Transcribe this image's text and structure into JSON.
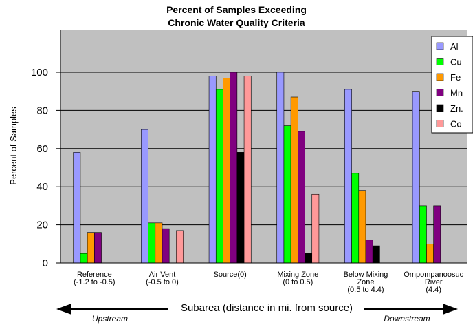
{
  "chart_data": {
    "type": "bar",
    "title": [
      "Percent of Samples Exceeding",
      "Chronic Water Quality Criteria"
    ],
    "ylabel": "Percent of Samples",
    "xlabel": "Subarea (distance in mi. from source)",
    "ylim": [
      0,
      100
    ],
    "yticks": [
      0,
      20,
      40,
      60,
      80,
      100
    ],
    "categories": [
      [
        "Reference",
        "(-1.2 to -0.5)"
      ],
      [
        "Air Vent",
        "(-0.5 to 0)"
      ],
      [
        "Source(0)"
      ],
      [
        "Mixing Zone",
        "(0 to 0.5)"
      ],
      [
        "Below Mixing",
        "Zone",
        "(0.5 to 4.4)"
      ],
      [
        "Ompompanoosuc",
        "River",
        "(4.4)"
      ]
    ],
    "series": [
      {
        "name": "Al",
        "color": "#9999ff",
        "values": [
          58,
          70,
          98,
          100,
          91,
          90
        ]
      },
      {
        "name": "Cu",
        "color": "#00ff00",
        "values": [
          5,
          21,
          91,
          72,
          47,
          30
        ]
      },
      {
        "name": "Fe",
        "color": "#ff9900",
        "values": [
          16,
          21,
          97,
          87,
          38,
          10
        ]
      },
      {
        "name": "Mn",
        "color": "#800080",
        "values": [
          16,
          18,
          100,
          69,
          12,
          30
        ]
      },
      {
        "name": "Zn",
        "color": "#000000",
        "values": [
          null,
          null,
          58,
          5,
          9,
          null
        ]
      },
      {
        "name": "Co",
        "color": "#ff9999",
        "values": [
          null,
          17,
          98,
          36,
          null,
          null
        ]
      }
    ],
    "legend_labels": [
      "Al",
      "Cu",
      "Fe",
      "Mn",
      "Zn.",
      "Co"
    ],
    "legend_position": "top-right",
    "annotations": {
      "left": "Upstream",
      "right": "Downstream"
    },
    "plot_background": "#c0c0c0",
    "grid": true
  }
}
